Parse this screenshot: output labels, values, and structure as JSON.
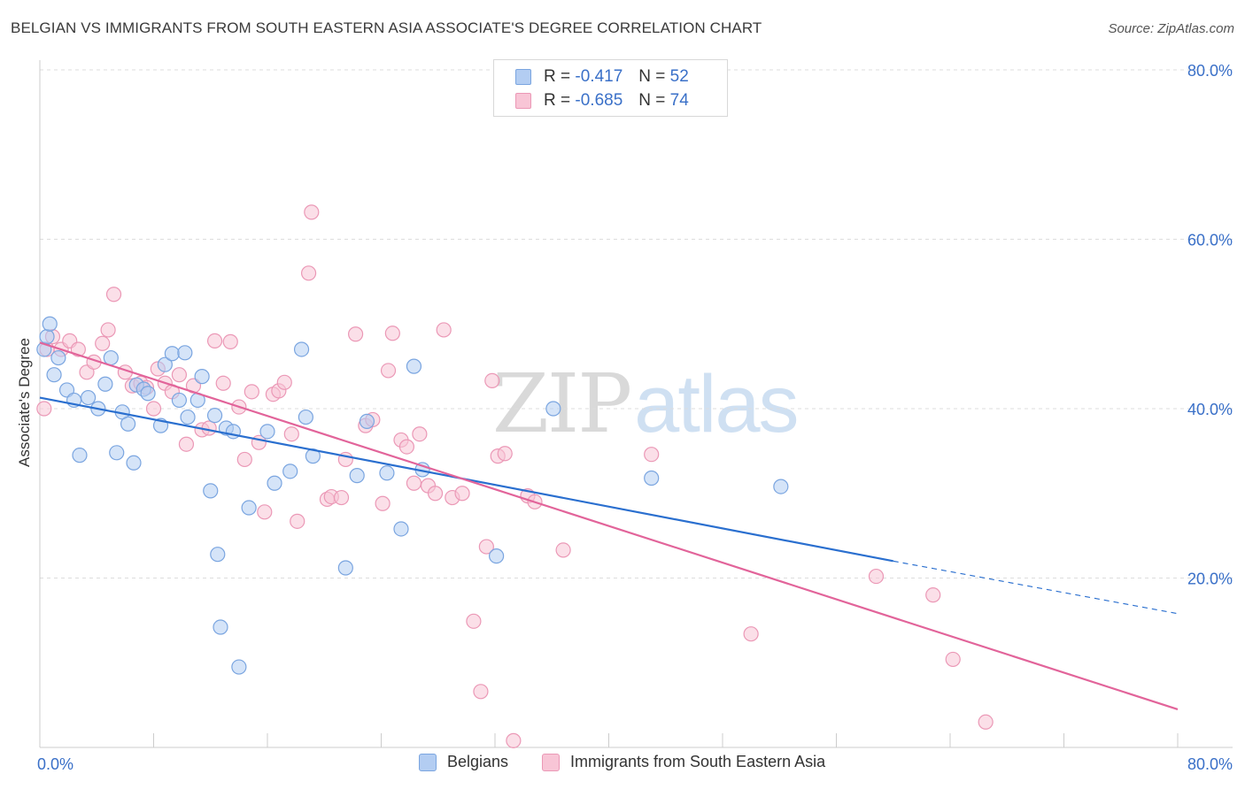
{
  "header": {
    "title": "BELGIAN VS IMMIGRANTS FROM SOUTH EASTERN ASIA ASSOCIATE'S DEGREE CORRELATION CHART",
    "source": "Source: ZipAtlas.com"
  },
  "watermark": {
    "zip": "ZIP",
    "atlas": "atlas"
  },
  "legend_top": [
    {
      "r_label": "R =",
      "r_value": "-0.417",
      "n_label": "N =",
      "n_value": "52"
    },
    {
      "r_label": "R =",
      "r_value": "-0.685",
      "n_label": "N =",
      "n_value": "74"
    }
  ],
  "legend_bottom": [
    {
      "label": "Belgians"
    },
    {
      "label": "Immigrants from South Eastern Asia"
    }
  ],
  "colors": {
    "belgians_fill": "#b3cdf2",
    "belgians_stroke": "#7aa5e0",
    "belgians_line": "#2a6fcf",
    "sea_fill": "#f8c5d6",
    "sea_stroke": "#eb98b6",
    "sea_line": "#e2649a",
    "tick_label": "#3a70c8",
    "grid": "#dddddd"
  },
  "chart_data": {
    "type": "scatter",
    "title": "BELGIAN VS IMMIGRANTS FROM SOUTH EASTERN ASIA ASSOCIATE'S DEGREE CORRELATION CHART",
    "xlabel": "",
    "ylabel": "Associate's Degree",
    "xlim": [
      0,
      80
    ],
    "ylim": [
      0,
      80
    ],
    "x_tick_labels": [
      "0.0%",
      "80.0%"
    ],
    "y_tick_labels": [
      "20.0%",
      "40.0%",
      "60.0%",
      "80.0%"
    ],
    "y_ticks": [
      20,
      40,
      60,
      80
    ],
    "grid": true,
    "legend_position": "top-center",
    "series": [
      {
        "name": "Belgians",
        "r": -0.417,
        "n": 52,
        "trend": {
          "x0": 0,
          "y0": 41.3,
          "x1": 60.0,
          "y1": 22.0,
          "dashed_to_x": 80,
          "dashed_to_y": 15.8
        },
        "points": [
          [
            0.3,
            47.0
          ],
          [
            0.5,
            48.5
          ],
          [
            0.7,
            50.0
          ],
          [
            1.0,
            44.0
          ],
          [
            1.3,
            46.0
          ],
          [
            1.9,
            42.2
          ],
          [
            2.4,
            41.0
          ],
          [
            2.8,
            34.5
          ],
          [
            3.4,
            41.3
          ],
          [
            4.1,
            40.0
          ],
          [
            4.6,
            42.9
          ],
          [
            5.0,
            46.0
          ],
          [
            5.4,
            34.8
          ],
          [
            5.8,
            39.6
          ],
          [
            6.2,
            38.2
          ],
          [
            6.6,
            33.6
          ],
          [
            6.8,
            42.8
          ],
          [
            7.3,
            42.3
          ],
          [
            7.6,
            41.8
          ],
          [
            8.5,
            38.0
          ],
          [
            8.8,
            45.2
          ],
          [
            9.3,
            46.5
          ],
          [
            9.8,
            41.0
          ],
          [
            10.2,
            46.6
          ],
          [
            10.4,
            39.0
          ],
          [
            11.1,
            41.0
          ],
          [
            11.4,
            43.8
          ],
          [
            12.0,
            30.3
          ],
          [
            12.3,
            39.2
          ],
          [
            12.5,
            22.8
          ],
          [
            12.7,
            14.2
          ],
          [
            13.1,
            37.7
          ],
          [
            13.6,
            37.3
          ],
          [
            14.0,
            9.5
          ],
          [
            14.7,
            28.3
          ],
          [
            16.0,
            37.3
          ],
          [
            16.5,
            31.2
          ],
          [
            17.6,
            32.6
          ],
          [
            18.4,
            47.0
          ],
          [
            18.7,
            39.0
          ],
          [
            19.2,
            34.4
          ],
          [
            21.5,
            21.2
          ],
          [
            22.3,
            32.1
          ],
          [
            23.0,
            38.5
          ],
          [
            24.4,
            32.4
          ],
          [
            25.4,
            25.8
          ],
          [
            26.3,
            45.0
          ],
          [
            26.9,
            32.8
          ],
          [
            32.1,
            22.6
          ],
          [
            36.1,
            40.0
          ],
          [
            43.0,
            31.8
          ],
          [
            52.1,
            30.8
          ]
        ]
      },
      {
        "name": "Immigrants from South Eastern Asia",
        "r": -0.685,
        "n": 74,
        "trend": {
          "x0": 0,
          "y0": 47.8,
          "x1": 80,
          "y1": 4.5
        },
        "points": [
          [
            0.3,
            40.0
          ],
          [
            0.5,
            47.0
          ],
          [
            0.9,
            48.5
          ],
          [
            1.5,
            47.0
          ],
          [
            2.1,
            48.0
          ],
          [
            2.7,
            47.0
          ],
          [
            3.3,
            44.3
          ],
          [
            3.8,
            45.5
          ],
          [
            4.4,
            47.7
          ],
          [
            4.8,
            49.3
          ],
          [
            5.2,
            53.5
          ],
          [
            6.0,
            44.3
          ],
          [
            6.5,
            42.7
          ],
          [
            7.1,
            43.0
          ],
          [
            7.5,
            42.5
          ],
          [
            8.0,
            40.0
          ],
          [
            8.3,
            44.7
          ],
          [
            8.8,
            43.0
          ],
          [
            9.3,
            42.0
          ],
          [
            9.8,
            44.0
          ],
          [
            10.3,
            35.8
          ],
          [
            10.8,
            42.7
          ],
          [
            11.4,
            37.5
          ],
          [
            11.9,
            37.7
          ],
          [
            12.3,
            48.0
          ],
          [
            12.9,
            43.0
          ],
          [
            13.4,
            47.9
          ],
          [
            14.0,
            40.2
          ],
          [
            14.4,
            34.0
          ],
          [
            14.9,
            42.0
          ],
          [
            15.4,
            36.0
          ],
          [
            15.8,
            27.8
          ],
          [
            16.4,
            41.7
          ],
          [
            16.8,
            42.1
          ],
          [
            17.2,
            43.1
          ],
          [
            17.7,
            37.0
          ],
          [
            18.1,
            26.7
          ],
          [
            18.9,
            56.0
          ],
          [
            19.1,
            63.2
          ],
          [
            20.2,
            29.3
          ],
          [
            20.5,
            29.6
          ],
          [
            21.2,
            29.5
          ],
          [
            21.5,
            34.0
          ],
          [
            22.2,
            48.8
          ],
          [
            22.9,
            38.0
          ],
          [
            23.4,
            38.7
          ],
          [
            24.1,
            28.8
          ],
          [
            24.5,
            44.5
          ],
          [
            24.8,
            48.9
          ],
          [
            25.4,
            36.3
          ],
          [
            25.8,
            35.5
          ],
          [
            26.3,
            31.2
          ],
          [
            26.7,
            37.0
          ],
          [
            27.3,
            30.9
          ],
          [
            27.8,
            30.0
          ],
          [
            28.4,
            49.3
          ],
          [
            29.0,
            29.5
          ],
          [
            29.7,
            30.0
          ],
          [
            30.5,
            14.9
          ],
          [
            31.0,
            6.6
          ],
          [
            31.4,
            23.7
          ],
          [
            31.8,
            43.3
          ],
          [
            32.2,
            34.4
          ],
          [
            32.7,
            34.7
          ],
          [
            33.3,
            0.8
          ],
          [
            34.3,
            29.7
          ],
          [
            34.8,
            29.0
          ],
          [
            36.8,
            23.3
          ],
          [
            43.0,
            34.6
          ],
          [
            50.0,
            13.4
          ],
          [
            58.8,
            20.2
          ],
          [
            62.8,
            18.0
          ],
          [
            64.2,
            10.4
          ],
          [
            66.5,
            3.0
          ]
        ]
      }
    ]
  }
}
